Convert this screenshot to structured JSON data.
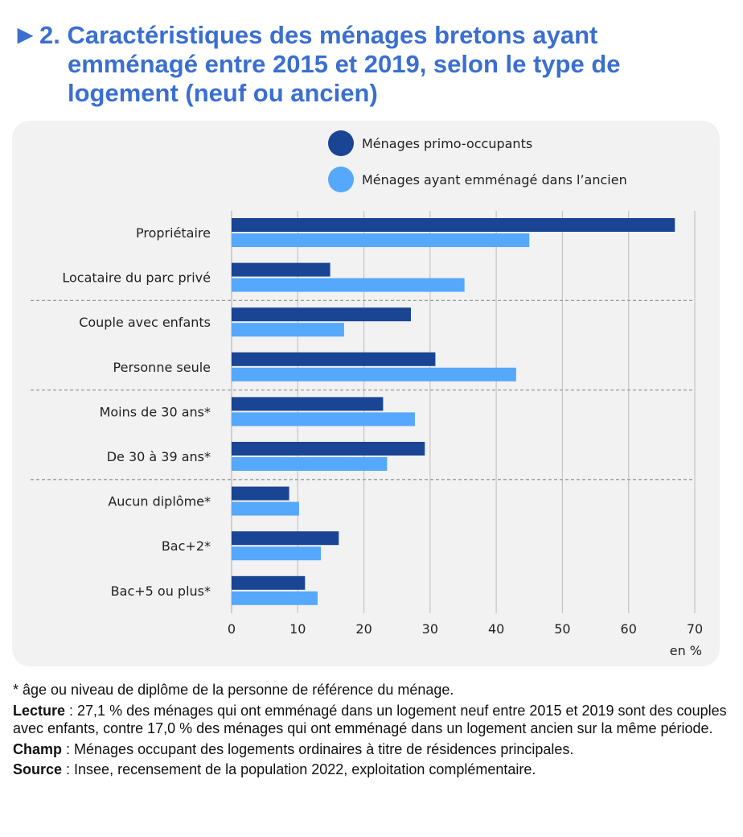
{
  "header": {
    "arrow": "▶",
    "title": "2. Caractéristiques des ménages bretons ayant emménagé entre 2015 et 2019, selon le type de logement (neuf ou ancien)"
  },
  "colors": {
    "title": "#3a6fd0",
    "series_primo": "#1a4594",
    "series_ancien": "#55a8fb",
    "panel_bg": "#f2f2f2",
    "gridline": "#c0c0c0"
  },
  "chart_data": {
    "type": "bar",
    "orientation": "horizontal",
    "title": "Caractéristiques des ménages bretons ayant emménagé entre 2015 et 2019, selon le type de logement (neuf ou ancien)",
    "xlabel": "en %",
    "ylabel": "",
    "xlim": [
      0,
      70
    ],
    "xticks": [
      0,
      10,
      20,
      30,
      40,
      50,
      60,
      70
    ],
    "grid": true,
    "legend_position": "top-right",
    "categories": [
      "Propriétaire",
      "Locataire du parc privé",
      "Couple avec enfants",
      "Personne seule",
      "Moins de 30 ans*",
      "De 30 à 39 ans*",
      "Aucun diplôme*",
      "Bac+2*",
      "Bac+5 ou plus*"
    ],
    "group_separators_after": [
      1,
      3,
      5
    ],
    "series": [
      {
        "name": "Ménages primo-occupants",
        "color": "#1a4594",
        "values": [
          67.0,
          14.9,
          27.1,
          30.8,
          22.9,
          29.2,
          8.7,
          16.2,
          11.1
        ]
      },
      {
        "name": "Ménages ayant emménagé dans l’ancien",
        "color": "#55a8fb",
        "values": [
          45.0,
          35.2,
          17.0,
          43.0,
          27.7,
          23.5,
          10.2,
          13.5,
          13.0
        ]
      }
    ]
  },
  "footnotes": {
    "asterisk": "* âge ou niveau de diplôme de la personne de référence du ménage.",
    "lecture_label": "Lecture",
    "lecture_text": " : 27,1 % des ménages qui ont emménagé dans un logement neuf entre 2015 et 2019 sont des couples avec enfants, contre 17,0 % des ménages qui ont emménagé dans un logement ancien sur la même période.",
    "champ_label": "Champ",
    "champ_text": " : Ménages occupant des logements ordinaires à titre de résidences principales.",
    "source_label": "Source",
    "source_text": " : Insee, recensement de la population 2022, exploitation complémentaire."
  }
}
